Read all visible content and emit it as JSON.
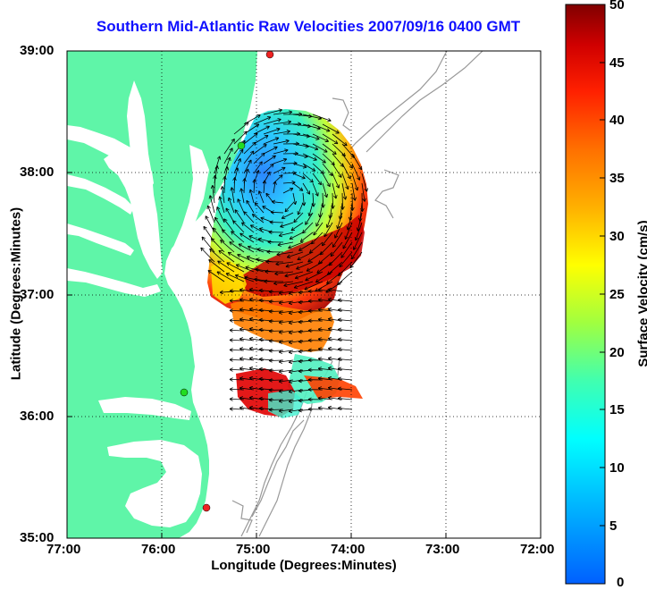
{
  "title": "Southern Mid-Atlantic Raw Velocities 2007/09/16 0400 GMT",
  "xlabel": "Longitude (Degrees:Minutes)",
  "ylabel": "Latitude (Degrees:Minutes)",
  "colorbar_label": "Surface Velocity (cm/s)",
  "colors": {
    "land": "#5ff5a8",
    "water": "#ffffff",
    "title": "#1010ff",
    "isobath": "#999999",
    "station_green": "#22dd22",
    "station_red": "#ee2222"
  },
  "chart_data": {
    "type": "heatmap",
    "title": "Southern Mid-Atlantic Raw Velocities 2007/09/16 0400 GMT",
    "xlabel": "Longitude (Degrees:Minutes)",
    "ylabel": "Latitude (Degrees:Minutes)",
    "xlim": [
      -77,
      -72
    ],
    "ylim": [
      35,
      39
    ],
    "grid": true,
    "x_ticks": [
      "77:00",
      "76:00",
      "75:00",
      "74:00",
      "73:00",
      "72:00"
    ],
    "y_ticks": [
      "39:00",
      "38:00",
      "37:00",
      "36:00",
      "35:00"
    ],
    "colorbar": {
      "label": "Surface Velocity (cm/s)",
      "min": 0,
      "max": 50,
      "ticks": [
        "0",
        "5",
        "10",
        "15",
        "20",
        "25",
        "30",
        "35",
        "40",
        "45",
        "50"
      ]
    },
    "stations": [
      {
        "lon": -74.86,
        "lat": 39.0,
        "color": "red"
      },
      {
        "lon": -75.15,
        "lat": 38.22,
        "color": "green"
      },
      {
        "lon": -75.73,
        "lat": 36.19,
        "color": "green"
      },
      {
        "lon": -75.5,
        "lat": 35.25,
        "color": "red"
      }
    ]
  }
}
